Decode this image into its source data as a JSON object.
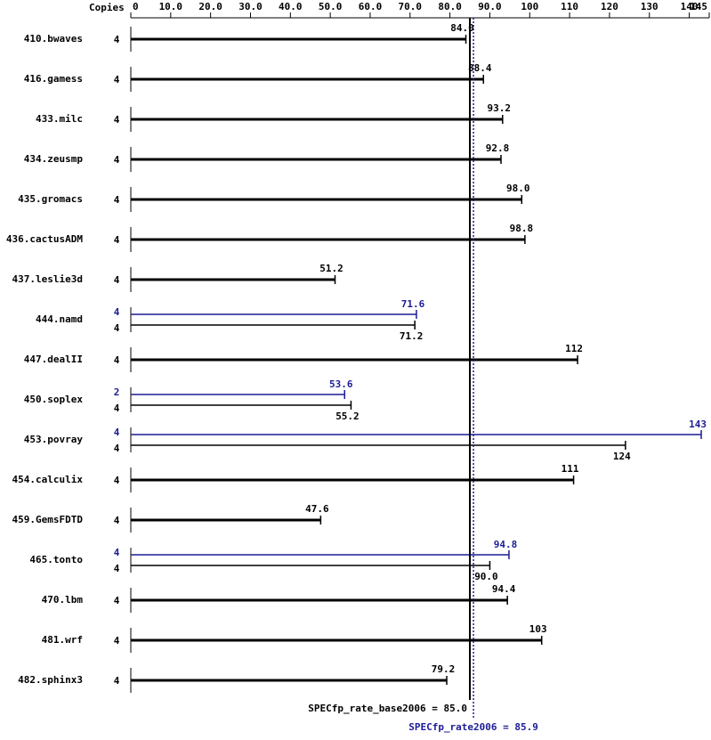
{
  "chart_data": {
    "type": "hbar",
    "copies_header": "Copies",
    "xlim": [
      0,
      145
    ],
    "xticks": [
      0,
      {
        "value": 10,
        "label": "10.0"
      },
      {
        "value": 20,
        "label": "20.0"
      },
      {
        "value": 30,
        "label": "30.0"
      },
      {
        "value": 40,
        "label": "40.0"
      },
      {
        "value": 50,
        "label": "50.0"
      },
      {
        "value": 60,
        "label": "60.0"
      },
      {
        "value": 70,
        "label": "70.0"
      },
      {
        "value": 80,
        "label": "80.0"
      },
      {
        "value": 90,
        "label": "90.0"
      },
      100,
      110,
      120,
      130,
      140,
      145
    ],
    "base_color": "#000000",
    "peak_color": "#1c1c96",
    "benchmarks": [
      {
        "name": "410.bwaves",
        "copies": 4,
        "value": 84.0,
        "value_label": "84.0"
      },
      {
        "name": "416.gamess",
        "copies": 4,
        "value": 88.4
      },
      {
        "name": "433.milc",
        "copies": 4,
        "value": 93.2
      },
      {
        "name": "434.zeusmp",
        "copies": 4,
        "value": 92.8
      },
      {
        "name": "435.gromacs",
        "copies": 4,
        "value": 98.0,
        "value_label": "98.0"
      },
      {
        "name": "436.cactusADM",
        "copies": 4,
        "value": 98.8
      },
      {
        "name": "437.leslie3d",
        "copies": 4,
        "value": 51.2
      },
      {
        "name": "444.namd",
        "peak": {
          "copies": 4,
          "value": 71.6
        },
        "base": {
          "copies": 4,
          "value": 71.2
        }
      },
      {
        "name": "447.dealII",
        "copies": 4,
        "value": 112
      },
      {
        "name": "450.soplex",
        "peak": {
          "copies": 2,
          "value": 53.6
        },
        "base": {
          "copies": 4,
          "value": 55.2
        }
      },
      {
        "name": "453.povray",
        "peak": {
          "copies": 4,
          "value": 143
        },
        "base": {
          "copies": 4,
          "value": 124
        }
      },
      {
        "name": "454.calculix",
        "copies": 4,
        "value": 111
      },
      {
        "name": "459.GemsFDTD",
        "copies": 4,
        "value": 47.6
      },
      {
        "name": "465.tonto",
        "peak": {
          "copies": 4,
          "value": 94.8
        },
        "base": {
          "copies": 4,
          "value": 90.0,
          "value_label": "90.0"
        }
      },
      {
        "name": "470.lbm",
        "copies": 4,
        "value": 94.4
      },
      {
        "name": "481.wrf",
        "copies": 4,
        "value": 103
      },
      {
        "name": "482.sphinx3",
        "copies": 4,
        "value": 79.2
      }
    ],
    "reference_lines": [
      {
        "label": "SPECfp_rate_base2006 = 85.0",
        "value": 85.0,
        "color": "#000000",
        "style": "solid"
      },
      {
        "label": "SPECfp_rate2006 = 85.9",
        "value": 85.9,
        "color": "#1c1c96",
        "style": "dotted"
      }
    ]
  }
}
